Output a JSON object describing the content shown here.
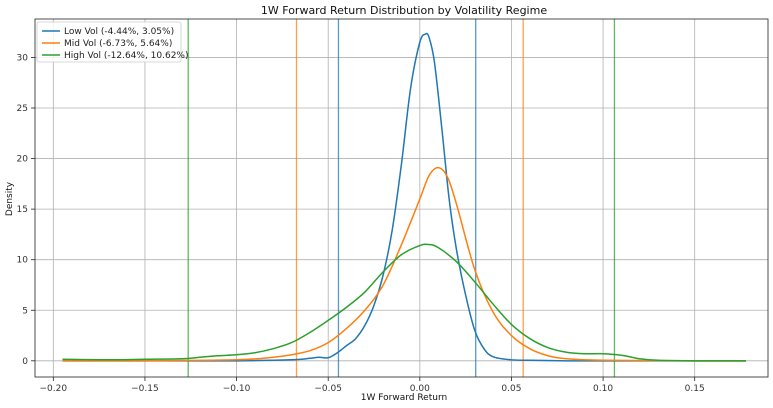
{
  "chart_data": {
    "type": "line",
    "title": "1W Forward Return Distribution by Volatility Regime",
    "xlabel": "1W Forward Return",
    "ylabel": "Density",
    "xlim": [
      -0.21,
      0.19
    ],
    "ylim": [
      -1.6,
      33.8
    ],
    "xticks": [
      -0.2,
      -0.15,
      -0.1,
      -0.05,
      0.0,
      0.05,
      0.1,
      0.15
    ],
    "xtick_labels": [
      "−0.20",
      "−0.15",
      "−0.10",
      "−0.05",
      "0.00",
      "0.05",
      "0.10",
      "0.15"
    ],
    "yticks": [
      0,
      5,
      10,
      15,
      20,
      25,
      30
    ],
    "ytick_labels": [
      "0",
      "5",
      "10",
      "15",
      "20",
      "25",
      "30"
    ],
    "grid": true,
    "legend_position": "top-left",
    "series": [
      {
        "name": "Low Vol (-4.44%, 3.05%)",
        "color": "#1f77b4",
        "vlines": [
          -0.0444,
          0.0305
        ],
        "x": [
          -0.195,
          -0.15,
          -0.1,
          -0.07,
          -0.06,
          -0.055,
          -0.05,
          -0.045,
          -0.04,
          -0.035,
          -0.03,
          -0.025,
          -0.02,
          -0.015,
          -0.01,
          -0.005,
          0.0,
          0.003,
          0.005,
          0.008,
          0.012,
          0.016,
          0.02,
          0.025,
          0.03,
          0.035,
          0.04,
          0.05,
          0.06,
          0.08,
          0.1,
          0.15,
          0.178
        ],
        "y": [
          0.0,
          0.0,
          0.0,
          0.1,
          0.25,
          0.35,
          0.3,
          0.8,
          1.5,
          2.2,
          3.5,
          5.5,
          8.5,
          13.0,
          19.5,
          27.0,
          31.5,
          32.3,
          32.0,
          29.5,
          23.0,
          16.0,
          11.0,
          6.5,
          3.0,
          1.2,
          0.4,
          0.1,
          0.05,
          0.0,
          0.0,
          0.0,
          0.0
        ]
      },
      {
        "name": "Mid Vol (-6.73%, 5.64%)",
        "color": "#ff7f0e",
        "vlines": [
          -0.0673,
          0.0564
        ],
        "x": [
          -0.195,
          -0.15,
          -0.1,
          -0.08,
          -0.07,
          -0.06,
          -0.05,
          -0.04,
          -0.03,
          -0.02,
          -0.01,
          0.0,
          0.005,
          0.01,
          0.015,
          0.02,
          0.03,
          0.04,
          0.05,
          0.06,
          0.07,
          0.08,
          0.1,
          0.15,
          0.178
        ],
        "y": [
          0.0,
          0.0,
          0.1,
          0.35,
          0.6,
          1.0,
          1.8,
          3.2,
          5.0,
          7.5,
          11.5,
          16.0,
          18.3,
          19.1,
          18.2,
          15.5,
          9.0,
          4.8,
          2.5,
          1.2,
          0.5,
          0.2,
          0.05,
          0.0,
          0.0
        ]
      },
      {
        "name": "High Vol (-12.64%, 10.62%)",
        "color": "#2ca02c",
        "vlines": [
          -0.1264,
          0.1062
        ],
        "x": [
          -0.195,
          -0.17,
          -0.15,
          -0.13,
          -0.12,
          -0.11,
          -0.1,
          -0.09,
          -0.08,
          -0.07,
          -0.06,
          -0.05,
          -0.04,
          -0.03,
          -0.02,
          -0.01,
          0.0,
          0.005,
          0.01,
          0.02,
          0.03,
          0.04,
          0.05,
          0.06,
          0.07,
          0.08,
          0.09,
          0.1,
          0.11,
          0.12,
          0.13,
          0.15,
          0.178
        ],
        "y": [
          0.15,
          0.1,
          0.15,
          0.2,
          0.35,
          0.5,
          0.6,
          0.8,
          1.2,
          1.8,
          2.8,
          4.0,
          5.3,
          6.8,
          8.8,
          10.5,
          11.4,
          11.5,
          11.2,
          9.8,
          7.8,
          5.6,
          3.6,
          2.2,
          1.3,
          0.85,
          0.7,
          0.7,
          0.55,
          0.2,
          0.05,
          0.0,
          0.0
        ]
      }
    ]
  }
}
